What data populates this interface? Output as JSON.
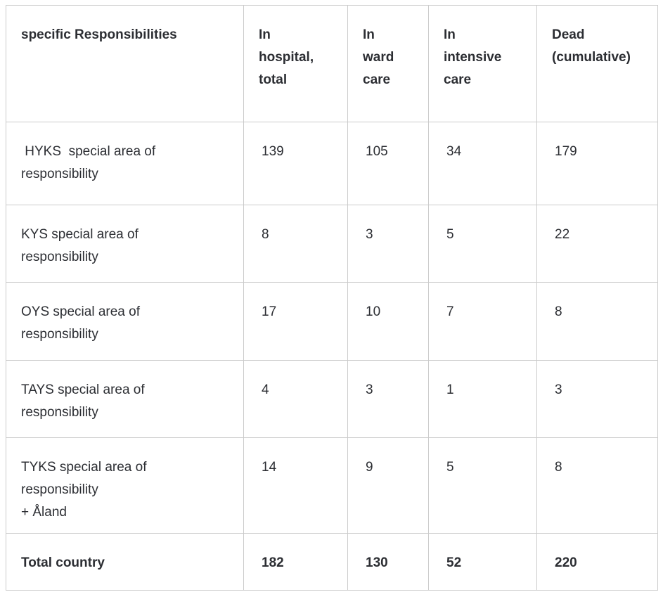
{
  "page": {
    "background_color": "#ffffff",
    "text_color": "#2c2e33",
    "border_color": "#cbcbcb"
  },
  "table": {
    "columns": [
      "specific Responsibilities",
      "In\nhospital,\ntotal",
      "In\nward\ncare",
      "In\nintensive\ncare",
      "Dead\n(cumulative)"
    ],
    "rows": [
      {
        "label": " HYKS  special area of\nresponsibility",
        "values": [
          "139",
          "105",
          "34",
          "179"
        ]
      },
      {
        "label": "KYS special area of\nresponsibility",
        "values": [
          "8",
          "3",
          "5",
          "22"
        ]
      },
      {
        "label": "OYS special area of\nresponsibility",
        "values": [
          "17",
          "10",
          "7",
          "8"
        ]
      },
      {
        "label": "TAYS special area of\nresponsibility",
        "values": [
          "4",
          "3",
          "1",
          "3"
        ]
      },
      {
        "label": "TYKS special area of\nresponsibility\n+ Åland",
        "values": [
          "14",
          "9",
          "5",
          "8"
        ]
      },
      {
        "label": "Total country",
        "values": [
          "182",
          "130",
          "52",
          "220"
        ]
      }
    ]
  },
  "chart_data": {
    "type": "table",
    "title": "",
    "categories": [
      "HYKS special area of responsibility",
      "KYS special area of responsibility",
      "OYS special area of responsibility",
      "TAYS special area of responsibility",
      "TYKS special area of responsibility + Åland",
      "Total country"
    ],
    "series": [
      {
        "name": "In hospital, total",
        "values": [
          139,
          8,
          17,
          4,
          14,
          182
        ]
      },
      {
        "name": "In ward care",
        "values": [
          105,
          3,
          10,
          3,
          9,
          130
        ]
      },
      {
        "name": "In intensive care",
        "values": [
          34,
          5,
          7,
          1,
          5,
          52
        ]
      },
      {
        "name": "Dead (cumulative)",
        "values": [
          179,
          22,
          8,
          3,
          8,
          220
        ]
      }
    ]
  }
}
